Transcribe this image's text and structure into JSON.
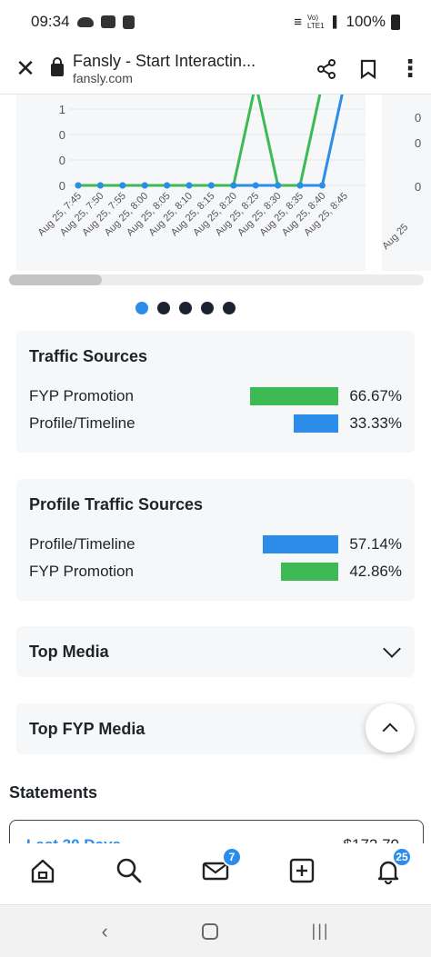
{
  "status_bar": {
    "time": "09:34",
    "battery": "100%",
    "net": "Vo) LTE1"
  },
  "browser": {
    "title": "Fansly - Start Interactin...",
    "url": "fansly.com"
  },
  "chart_data": {
    "type": "line",
    "categories": [
      "Aug 25, 7:45",
      "Aug 25, 7:50",
      "Aug 25, 7:55",
      "Aug 25, 8:00",
      "Aug 25, 8:05",
      "Aug 25, 8:10",
      "Aug 25, 8:15",
      "Aug 25, 8:20",
      "Aug 25, 8:25",
      "Aug 25, 8:30",
      "Aug 25, 8:35",
      "Aug 25, 8:40",
      "Aug 25, 8:45"
    ],
    "y_ticks": [
      "1",
      "0",
      "0",
      "0"
    ],
    "second_card_y_ticks": [
      "0",
      "0",
      "0"
    ],
    "second_card_x_tick": "Aug 25",
    "series": [
      {
        "color": "#3dba54",
        "values": [
          0,
          0,
          0,
          0,
          0,
          0,
          0,
          0,
          4,
          0,
          0,
          4,
          4
        ]
      },
      {
        "color": "#2b8ce9",
        "values": [
          0,
          0,
          0,
          0,
          0,
          0,
          0,
          0,
          0,
          0,
          0,
          0,
          4
        ]
      }
    ]
  },
  "carousel": {
    "count": 5,
    "active": 0
  },
  "traffic_sources": {
    "title": "Traffic Sources",
    "rows": [
      {
        "label": "FYP Promotion",
        "pct": "66.67%",
        "fraction": 0.6667,
        "color": "#3dba54"
      },
      {
        "label": "Profile/Timeline",
        "pct": "33.33%",
        "fraction": 0.3333,
        "color": "#2b8ce9"
      }
    ]
  },
  "profile_traffic_sources": {
    "title": "Profile Traffic Sources",
    "rows": [
      {
        "label": "Profile/Timeline",
        "pct": "57.14%",
        "fraction": 0.5714,
        "color": "#2b8ce9"
      },
      {
        "label": "FYP Promotion",
        "pct": "42.86%",
        "fraction": 0.4286,
        "color": "#3dba54"
      }
    ]
  },
  "top_media": {
    "title": "Top Media"
  },
  "top_fyp_media": {
    "title": "Top FYP Media"
  },
  "statements": {
    "heading": "Statements",
    "period": "Last 30 Days",
    "amount": "$172.70"
  },
  "nav": {
    "messages_badge": "7",
    "notifications_badge": "25"
  }
}
